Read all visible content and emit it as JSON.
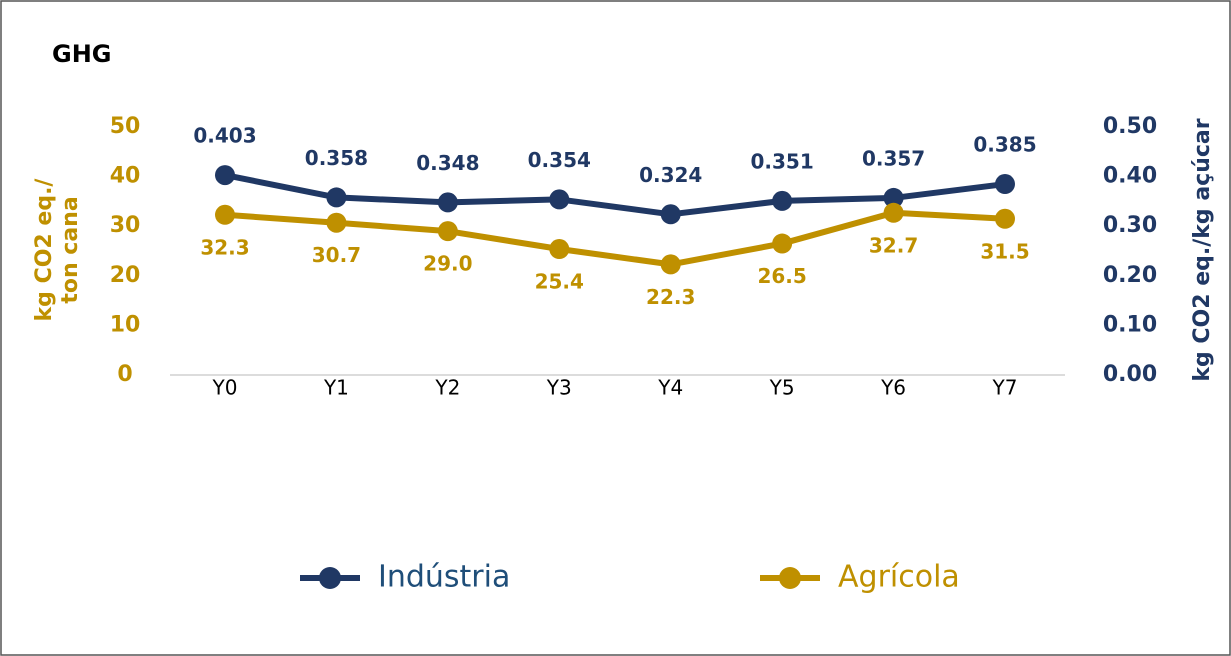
{
  "chart_data": {
    "type": "line",
    "title": "GHG",
    "categories": [
      "Y0",
      "Y1",
      "Y2",
      "Y3",
      "Y4",
      "Y5",
      "Y6",
      "Y7"
    ],
    "ylabel": "kg CO2 eq./ ton cana",
    "y2label": "kg CO2 eq./kg açúcar",
    "ylim": [
      0,
      50
    ],
    "yticks": [
      0,
      10,
      20,
      30,
      40,
      50
    ],
    "y2lim": [
      0,
      0.5
    ],
    "y2ticks": [
      {
        "value": 0,
        "label": "0.00"
      },
      {
        "value": 0.1,
        "label": "0.10"
      },
      {
        "value": 0.2,
        "label": "0.20"
      },
      {
        "value": 0.3,
        "label": "0.30"
      },
      {
        "value": 0.4,
        "label": "0.40"
      },
      {
        "value": 0.5,
        "label": "0.50"
      }
    ],
    "grid": false,
    "legend": "bottom",
    "series": [
      {
        "name": "Indústria",
        "color": "#203864",
        "axis": "y2",
        "values": [
          0.403,
          0.358,
          0.348,
          0.354,
          0.324,
          0.351,
          0.357,
          0.385
        ]
      },
      {
        "name": "Agrícola",
        "color": "#bf9000",
        "values": [
          32.3,
          30.7,
          29.0,
          25.4,
          22.3,
          26.5,
          32.7,
          31.5
        ],
        "value_labels": [
          "32.3",
          "30.7",
          "29.0",
          "25.4",
          "22.3",
          "26.5",
          "32.7",
          "31.5"
        ]
      }
    ]
  }
}
